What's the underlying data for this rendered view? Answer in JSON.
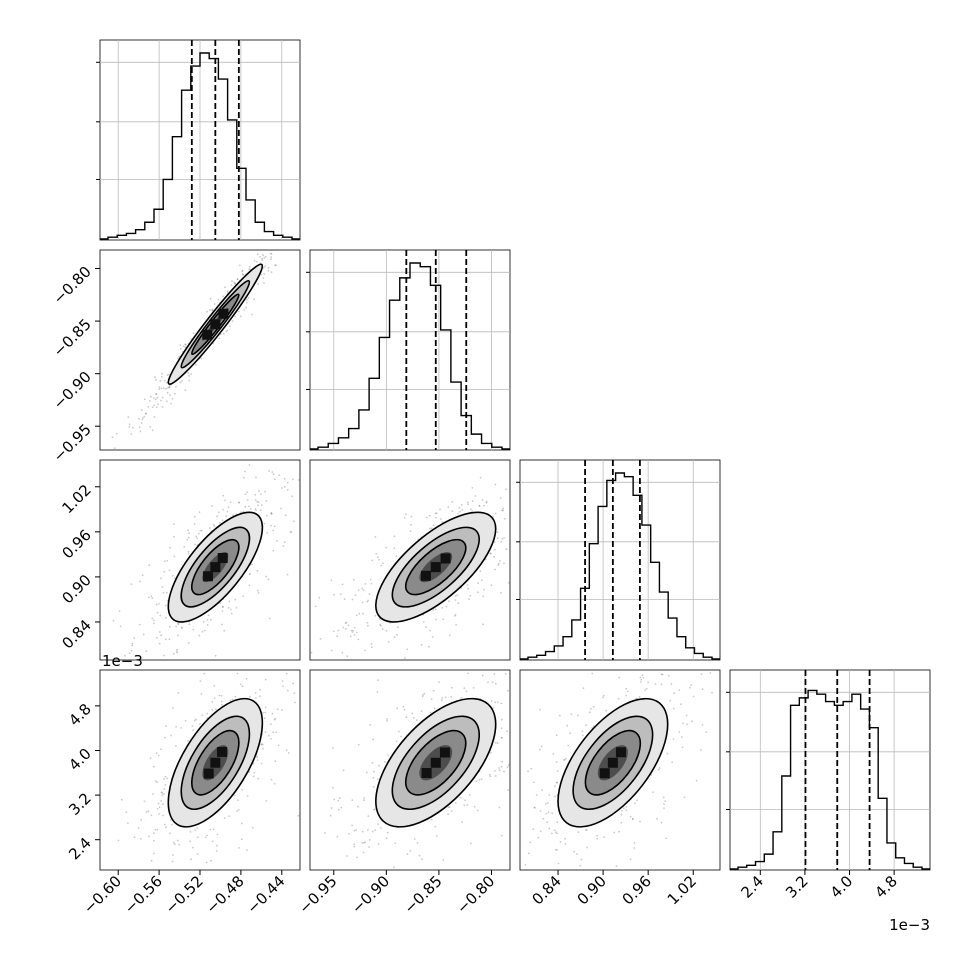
{
  "chart_data": {
    "type": "corner",
    "n_params": 4,
    "ranges": [
      [
        -0.61,
        -0.43
      ],
      [
        -0.965,
        -0.79
      ],
      [
        0.8,
        1.045
      ],
      [
        2.0,
        5.3
      ]
    ],
    "quantiles": [
      [
        -0.528,
        -0.505,
        -0.482
      ],
      [
        -0.881,
        -0.853,
        -0.824
      ],
      [
        0.876,
        0.913,
        0.949
      ],
      [
        3.21,
        3.78,
        4.36
      ]
    ],
    "axis_ticks": [
      {
        "values": [
          -0.6,
          -0.56,
          -0.52,
          -0.48,
          -0.44
        ],
        "labels": [
          "−0.60",
          "−0.56",
          "−0.52",
          "−0.48",
          "−0.44"
        ]
      },
      {
        "values": [
          -0.95,
          -0.9,
          -0.85,
          -0.8
        ],
        "labels": [
          "−0.95",
          "−0.90",
          "−0.85",
          "−0.80"
        ]
      },
      {
        "values": [
          0.84,
          0.9,
          0.96,
          1.02
        ],
        "labels": [
          "0.84",
          "0.90",
          "0.96",
          "1.02"
        ]
      },
      {
        "values": [
          2.4,
          3.2,
          4.0,
          4.8
        ],
        "labels": [
          "2.4",
          "3.2",
          "4.0",
          "4.8"
        ]
      }
    ],
    "offset_text": "1e−3",
    "histograms": [
      [
        1,
        2,
        3,
        5,
        9,
        16,
        32,
        55,
        80,
        93,
        100,
        97,
        86,
        64,
        38,
        21,
        9,
        4,
        2,
        1
      ],
      [
        1,
        3,
        6,
        11,
        21,
        38,
        60,
        80,
        92,
        100,
        98,
        88,
        64,
        36,
        18,
        8,
        3,
        1
      ],
      [
        1,
        2,
        4,
        7,
        12,
        21,
        38,
        62,
        82,
        96,
        100,
        98,
        88,
        72,
        52,
        36,
        22,
        12,
        6,
        3,
        1
      ],
      [
        1,
        2,
        4,
        8,
        20,
        50,
        88,
        92,
        96,
        94,
        90,
        88,
        90,
        94,
        86,
        76,
        38,
        14,
        6,
        3,
        1
      ]
    ],
    "correlations": [
      [
        1,
        0.97,
        0.72,
        0.62
      ],
      [
        0.97,
        1,
        0.7,
        0.6
      ],
      [
        0.72,
        0.7,
        1,
        0.6
      ],
      [
        0.62,
        0.6,
        0.6,
        1
      ]
    ],
    "grid": true
  }
}
